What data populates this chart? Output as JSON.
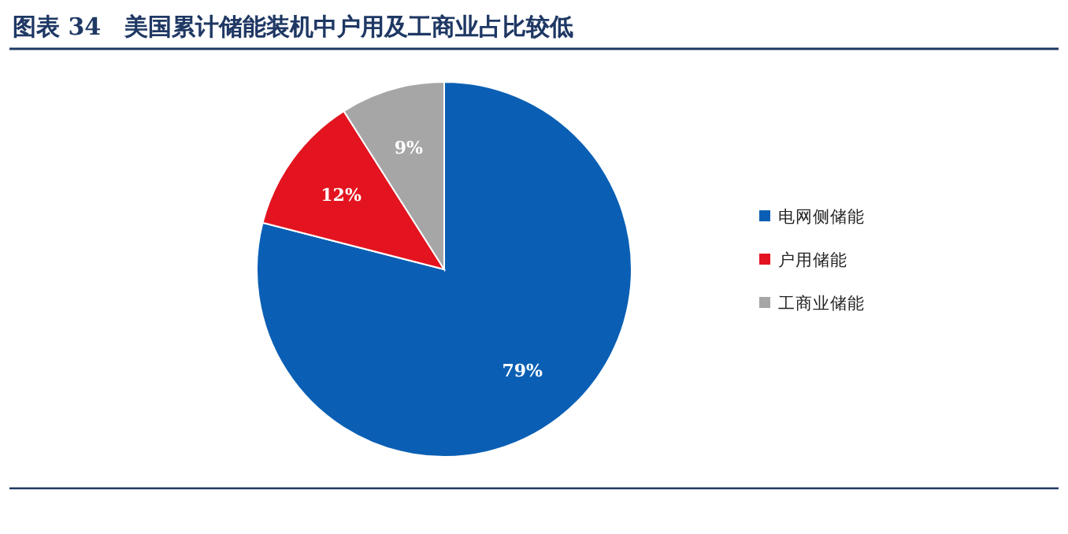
{
  "chart_data": {
    "type": "pie",
    "title": "图表 34　美国累计储能装机中户用及工商业占比较低",
    "categories": [
      "电网侧储能",
      "户用储能",
      "工商业储能"
    ],
    "values": [
      79,
      12,
      9
    ],
    "colors": [
      "#0a5fb4",
      "#e3141f",
      "#a6a6a6"
    ],
    "value_labels": [
      "79%",
      "12%",
      "9%"
    ],
    "legend": "right"
  }
}
